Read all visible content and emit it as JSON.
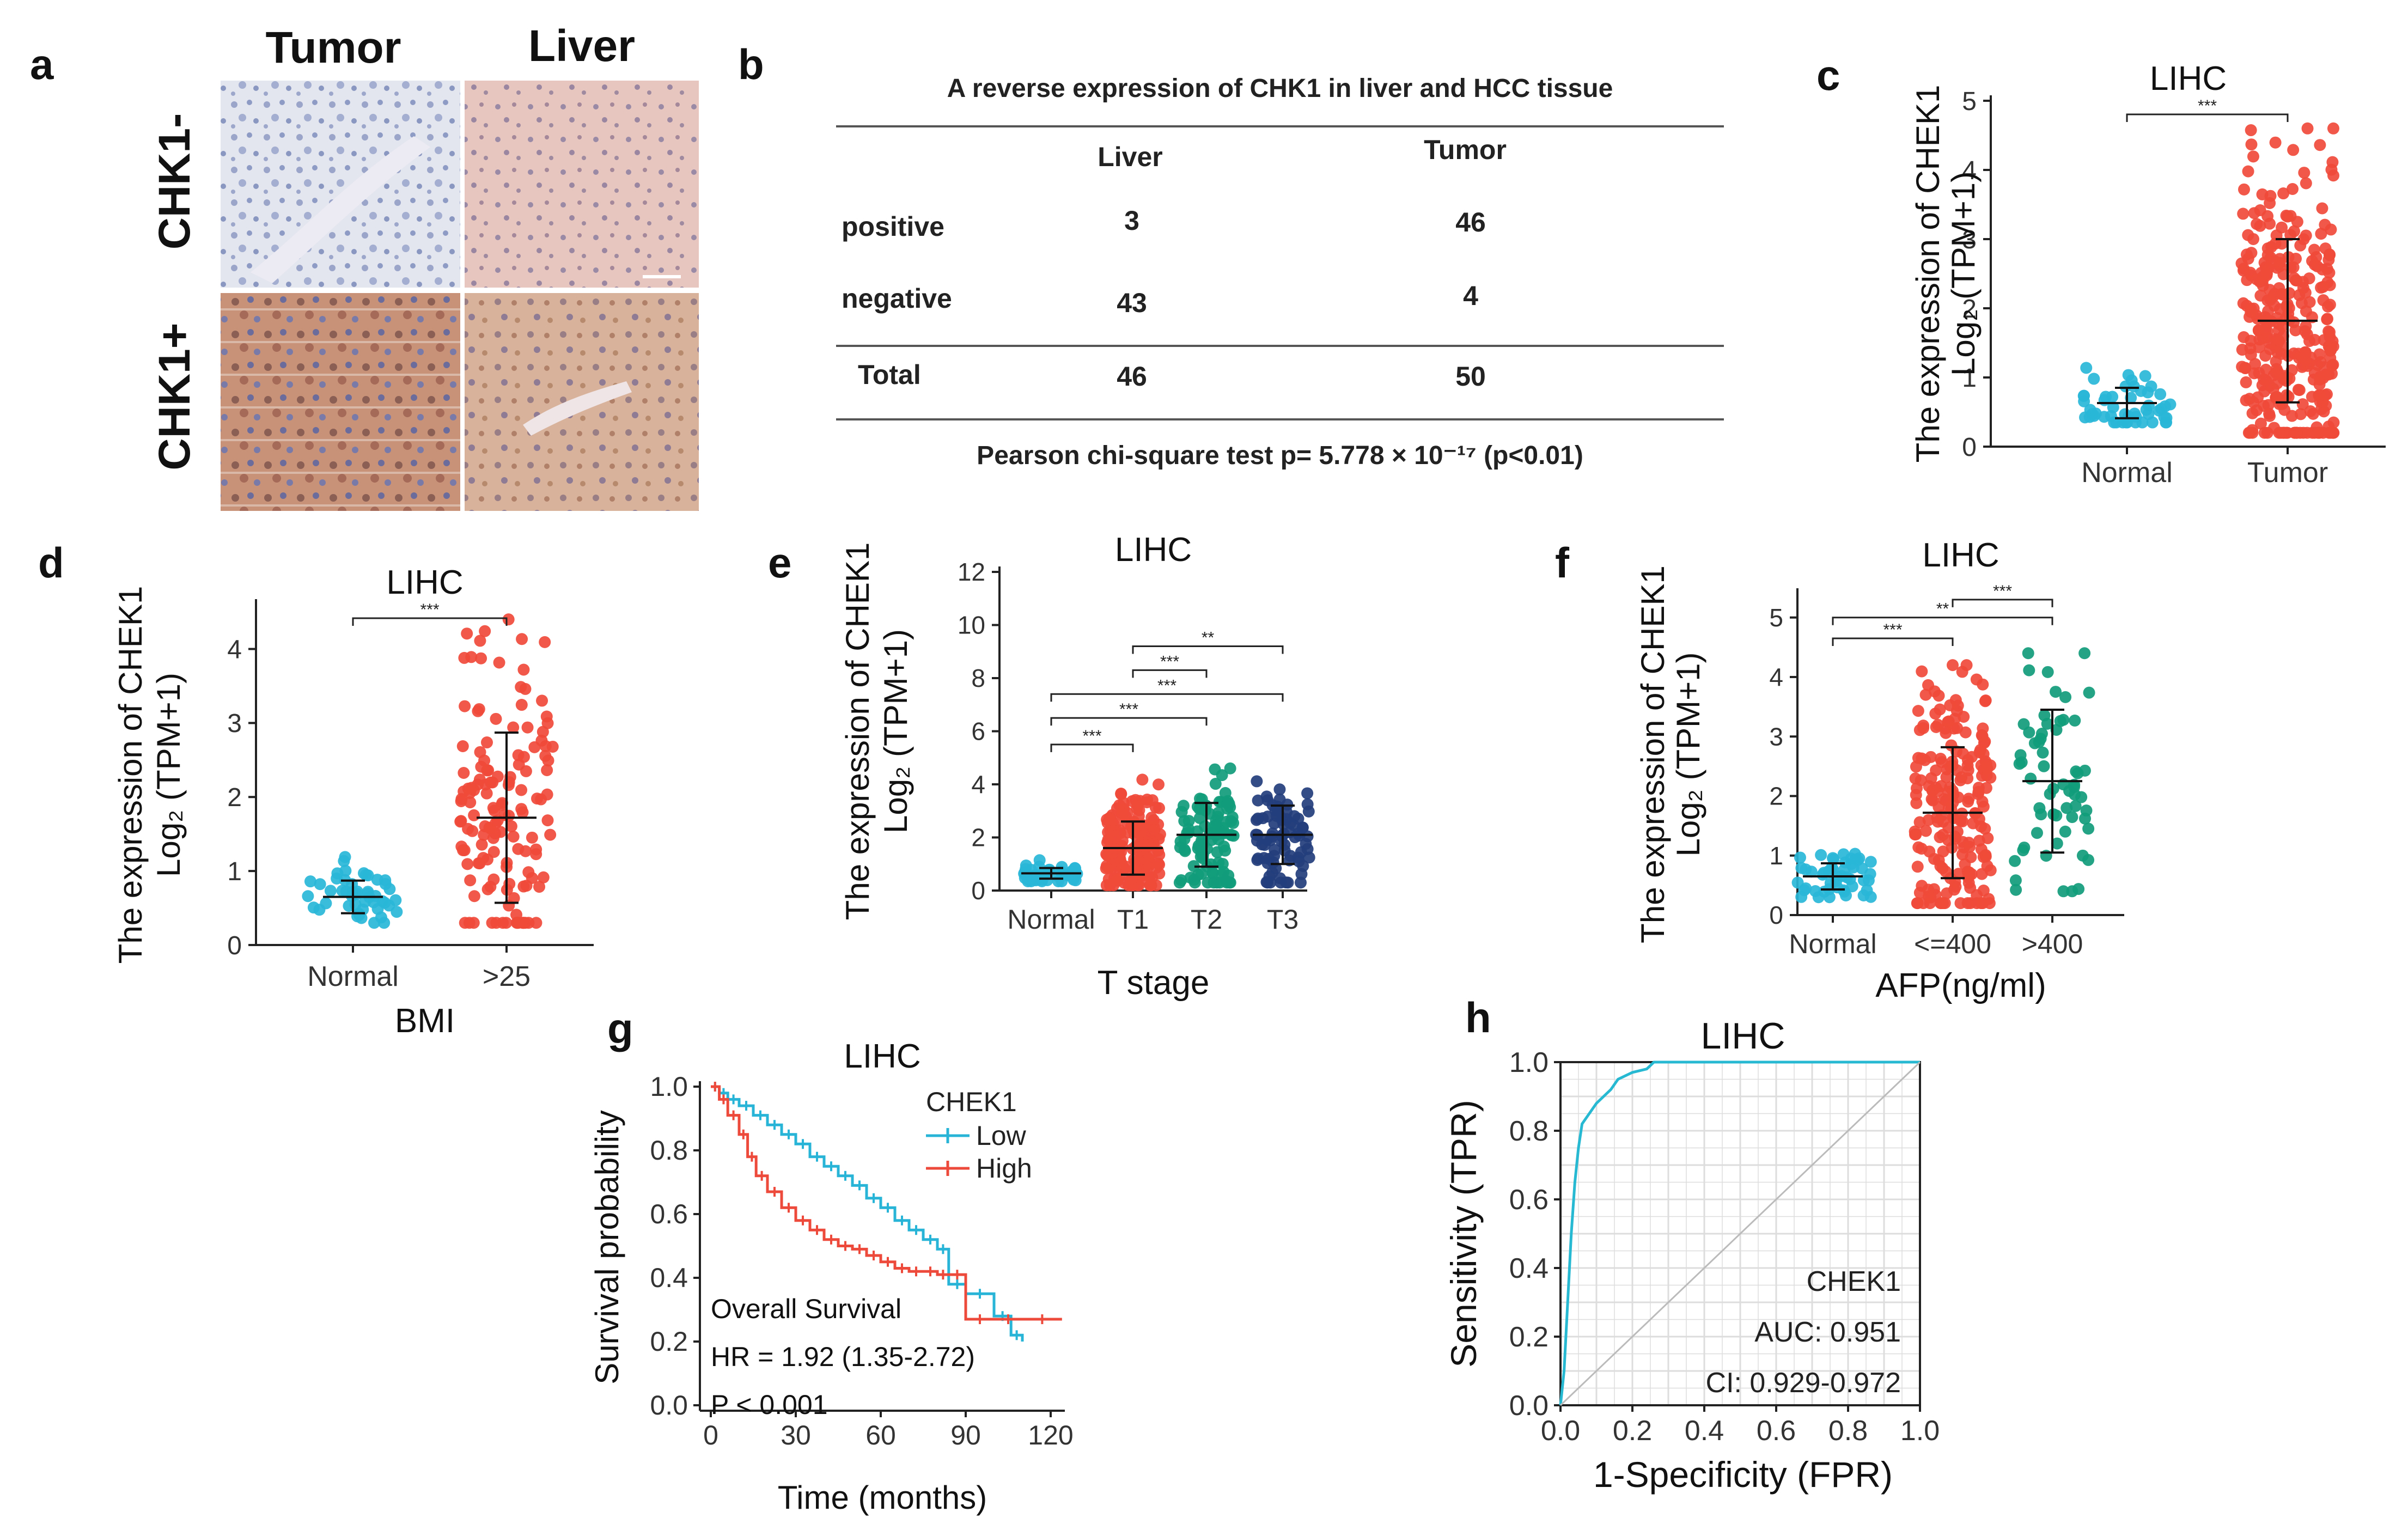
{
  "figure": {
    "panel_letters": [
      "a",
      "b",
      "c",
      "d",
      "e",
      "f",
      "g",
      "h"
    ]
  },
  "colors": {
    "normal": "#29b6d8",
    "tumor": "#f04a3a",
    "t2": "#119c7b",
    "t3": "#233e7c",
    "low": "#27b4d6",
    "high": "#ee4a3c",
    "roc": "#27b8d2"
  },
  "panel_a": {
    "col_headers": [
      "Tumor",
      "Liver"
    ],
    "row_labels": [
      "CHK1-",
      "CHK1+"
    ]
  },
  "panel_b": {
    "title": "A reverse expression of CHK1 in liver and HCC tissue",
    "columns": [
      "Liver",
      "Tumor"
    ],
    "rows": [
      {
        "label": "positive",
        "liver": "3",
        "tumor": "46"
      },
      {
        "label": "negative",
        "liver": "43",
        "tumor": "4"
      },
      {
        "label": "Total",
        "liver": "46",
        "tumor": "50"
      }
    ],
    "footnote": "Pearson chi-square test p= 5.778 × 10⁻¹⁷ (p<0.01)"
  },
  "chart_data": [
    {
      "id": "c",
      "type": "scatter",
      "title": "LIHC",
      "ylabel_line1": "The expression of CHEK1",
      "ylabel_line2": "Log₂ (TPM+1)",
      "xlabel": "",
      "ylim": [
        0,
        5
      ],
      "yticks": [
        0,
        1,
        2,
        3,
        4,
        5
      ],
      "groups": [
        {
          "name": "Normal",
          "n": 50,
          "mean": 0.63,
          "sd": 0.22,
          "min": 0.35,
          "max": 1.3,
          "color": "#29b6d8"
        },
        {
          "name": "Tumor",
          "n": 374,
          "mean": 1.82,
          "sd": 1.18,
          "min": 0.2,
          "max": 4.6,
          "color": "#f04a3a"
        }
      ],
      "comparisons": [
        {
          "from": 0,
          "to": 1,
          "label": "***"
        }
      ]
    },
    {
      "id": "d",
      "type": "scatter",
      "title": "LIHC",
      "ylabel_line1": "The expression of CHEK1",
      "ylabel_line2": "Log₂ (TPM+1)",
      "xlabel": "BMI",
      "ylim": [
        0,
        4.6
      ],
      "yticks": [
        0,
        1,
        2,
        3,
        4
      ],
      "groups": [
        {
          "name": "Normal",
          "n": 50,
          "mean": 0.65,
          "sd": 0.22,
          "min": 0.3,
          "max": 1.3,
          "color": "#29b6d8"
        },
        {
          "name": ">25",
          "n": 140,
          "mean": 1.72,
          "sd": 1.15,
          "min": 0.3,
          "max": 4.4,
          "color": "#f04a3a"
        }
      ],
      "comparisons": [
        {
          "from": 0,
          "to": 1,
          "label": "***"
        }
      ]
    },
    {
      "id": "e",
      "type": "scatter",
      "title": "LIHC",
      "ylabel_line1": "The expression of CHEK1",
      "ylabel_line2": "Log₂ (TPM+1)",
      "xlabel": "T stage",
      "ylim": [
        0,
        12
      ],
      "yticks": [
        0,
        2,
        4,
        6,
        8,
        10,
        12
      ],
      "groups": [
        {
          "name": "Normal",
          "n": 50,
          "mean": 0.65,
          "sd": 0.2,
          "min": 0.35,
          "max": 1.2,
          "color": "#29b6d8"
        },
        {
          "name": "T1",
          "n": 180,
          "mean": 1.6,
          "sd": 1.0,
          "min": 0.2,
          "max": 4.6,
          "color": "#f04a3a"
        },
        {
          "name": "T2",
          "n": 95,
          "mean": 2.1,
          "sd": 1.2,
          "min": 0.3,
          "max": 4.6,
          "color": "#119c7b"
        },
        {
          "name": "T3",
          "n": 80,
          "mean": 2.1,
          "sd": 1.1,
          "min": 0.3,
          "max": 4.4,
          "color": "#233e7c"
        }
      ],
      "comparisons": [
        {
          "from": 0,
          "to": 1,
          "y": 5.5,
          "label": "***"
        },
        {
          "from": 0,
          "to": 2,
          "y": 6.5,
          "label": "***"
        },
        {
          "from": 0,
          "to": 3,
          "y": 7.4,
          "label": "***"
        },
        {
          "from": 1,
          "to": 2,
          "y": 8.3,
          "label": "***"
        },
        {
          "from": 1,
          "to": 3,
          "y": 9.2,
          "label": "**"
        }
      ]
    },
    {
      "id": "f",
      "type": "scatter",
      "title": "LIHC",
      "ylabel_line1": "The expression of CHEK1",
      "ylabel_line2": "Log₂ (TPM+1)",
      "xlabel": "AFP(ng/ml)",
      "ylim": [
        0,
        5.4
      ],
      "yticks": [
        0,
        1,
        2,
        3,
        4,
        5
      ],
      "groups": [
        {
          "name": "Normal",
          "n": 50,
          "mean": 0.65,
          "sd": 0.22,
          "min": 0.3,
          "max": 1.3,
          "color": "#29b6d8"
        },
        {
          "name": "<=400",
          "n": 200,
          "mean": 1.72,
          "sd": 1.1,
          "min": 0.2,
          "max": 4.2,
          "color": "#f04a3a"
        },
        {
          "name": ">400",
          "n": 60,
          "mean": 2.25,
          "sd": 1.2,
          "min": 0.4,
          "max": 4.4,
          "color": "#119c7b"
        }
      ],
      "comparisons": [
        {
          "from": 0,
          "to": 1,
          "y": 4.65,
          "label": "***"
        },
        {
          "from": 0,
          "to": 2,
          "y": 5.0,
          "label": "**"
        },
        {
          "from": 1,
          "to": 2,
          "y": 5.3,
          "label": "***"
        }
      ]
    },
    {
      "id": "g",
      "type": "line",
      "title": "LIHC",
      "xlabel": "Time (months)",
      "ylabel": "Survival probability",
      "xlim": [
        0,
        125
      ],
      "ylim": [
        0,
        1
      ],
      "xticks": [
        0,
        30,
        60,
        90,
        120
      ],
      "yticks": [
        0.0,
        0.2,
        0.4,
        0.6,
        0.8,
        1.0
      ],
      "legend_title": "CHEK1",
      "annotations": [
        "Overall Survival",
        "HR = 1.92 (1.35-2.72)",
        "P < 0.001"
      ],
      "series": [
        {
          "name": "Low",
          "color": "#27b4d6",
          "x": [
            0,
            3,
            6,
            10,
            15,
            20,
            25,
            30,
            35,
            40,
            45,
            50,
            55,
            60,
            65,
            70,
            75,
            80,
            84,
            90,
            100,
            106,
            110
          ],
          "y": [
            1.0,
            0.98,
            0.96,
            0.94,
            0.91,
            0.88,
            0.85,
            0.82,
            0.78,
            0.75,
            0.72,
            0.69,
            0.65,
            0.62,
            0.58,
            0.55,
            0.52,
            0.49,
            0.38,
            0.35,
            0.28,
            0.22,
            0.2
          ]
        },
        {
          "name": "High",
          "color": "#ee4a3c",
          "x": [
            0,
            3,
            6,
            10,
            13,
            16,
            20,
            25,
            30,
            35,
            40,
            45,
            50,
            55,
            60,
            65,
            70,
            75,
            80,
            84,
            90,
            100,
            110,
            124
          ],
          "y": [
            1.0,
            0.96,
            0.91,
            0.85,
            0.78,
            0.72,
            0.67,
            0.62,
            0.58,
            0.55,
            0.52,
            0.5,
            0.49,
            0.47,
            0.45,
            0.43,
            0.42,
            0.42,
            0.41,
            0.41,
            0.27,
            0.27,
            0.27,
            0.27
          ]
        }
      ]
    },
    {
      "id": "h",
      "type": "line",
      "title": "LIHC",
      "xlabel": "1-Specificity (FPR)",
      "ylabel": "Sensitivity (TPR)",
      "xlim": [
        0,
        1
      ],
      "ylim": [
        0,
        1
      ],
      "xticks": [
        0.0,
        0.2,
        0.4,
        0.6,
        0.8,
        1.0
      ],
      "yticks": [
        0.0,
        0.2,
        0.4,
        0.6,
        0.8,
        1.0
      ],
      "annotations": [
        "CHEK1",
        "AUC: 0.951",
        "CI: 0.929-0.972"
      ],
      "series": [
        {
          "name": "CHEK1",
          "color": "#27b8d2",
          "x": [
            0,
            0.01,
            0.02,
            0.03,
            0.04,
            0.05,
            0.06,
            0.08,
            0.1,
            0.12,
            0.14,
            0.16,
            0.2,
            0.24,
            0.26,
            0.3,
            0.4,
            0.6,
            0.8,
            1.0
          ],
          "y": [
            0,
            0.1,
            0.3,
            0.5,
            0.65,
            0.75,
            0.82,
            0.85,
            0.88,
            0.9,
            0.92,
            0.95,
            0.97,
            0.98,
            1.0,
            1.0,
            1.0,
            1.0,
            1.0,
            1.0
          ]
        },
        {
          "name": "diagonal",
          "color": "#bbbbbb",
          "x": [
            0,
            1
          ],
          "y": [
            0,
            1
          ]
        }
      ]
    }
  ]
}
